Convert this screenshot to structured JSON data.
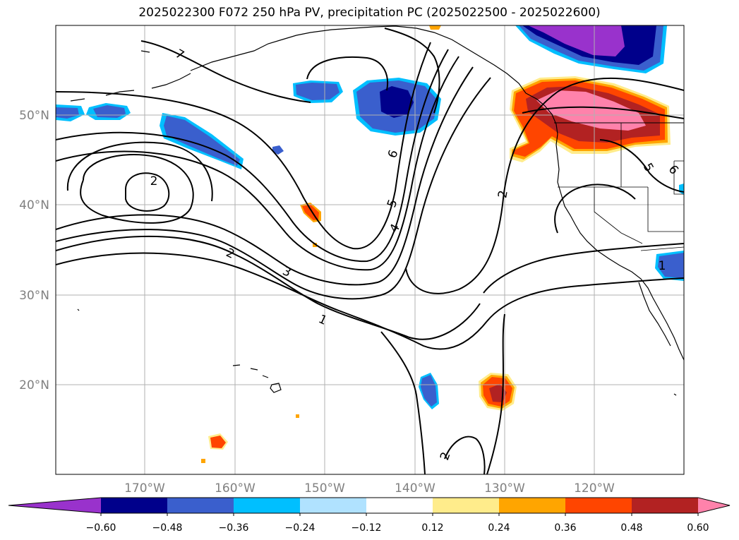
{
  "title": "2025022300 F072 250 hPa PV, precipitation PC (2025022500 - 2025022600)",
  "lat_labels": [
    "50°N",
    "40°N",
    "30°N",
    "20°N"
  ],
  "lon_labels": [
    "170°W",
    "160°W",
    "150°W",
    "140°W",
    "130°W",
    "120°W"
  ],
  "contour_labels": [
    "7",
    "2",
    "2",
    "3",
    "1",
    "6",
    "5",
    "4",
    "2",
    "5",
    "6",
    "1",
    "2"
  ],
  "colorbar": {
    "ticks": [
      "−0.60",
      "−0.48",
      "−0.36",
      "−0.24",
      "−0.12",
      "0.12",
      "0.24",
      "0.36",
      "0.48",
      "0.60"
    ],
    "colors": [
      "#9932CC",
      "#00008B",
      "#3A5FCD",
      "#00BFFF",
      "#B0E2FF",
      "#FFFFFF",
      "#FFEC8B",
      "#FFA500",
      "#FF4500",
      "#B22222",
      "#FF82AB"
    ]
  },
  "colors": {
    "grid": "#b0b0b0",
    "axis_label": "#808080",
    "contour": "#000000"
  }
}
